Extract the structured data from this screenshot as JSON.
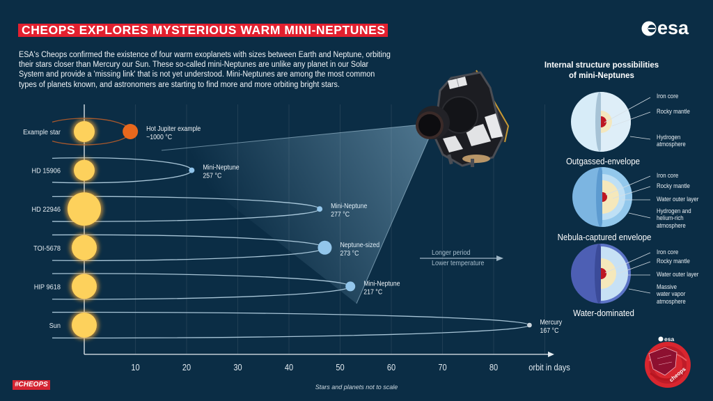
{
  "header": {
    "title": "CHEOPS EXPLORES MYSTERIOUS WARM MINI-NEPTUNES",
    "logo_text": "esa"
  },
  "intro": {
    "lines": [
      "ESA's Cheops confirmed the existence of four warm exoplanets with sizes between Earth and Neptune, orbiting",
      "their stars closer than Mercury our Sun. These so-called mini-Neptunes are unlike any planet in our Solar",
      "System and provide a 'missing link' that is not yet understood. Mini-Neptunes are among the most common",
      "types of planets known, and astronomers are starting to find more and more orbiting bright stars."
    ]
  },
  "chart_data": {
    "type": "scatter",
    "title": "CHEOPS EXPLORES MYSTERIOUS WARM MINI-NEPTUNES",
    "xlabel": "orbit in days",
    "ylabel": "",
    "xlim": [
      0,
      90
    ],
    "x_ticks": [
      10,
      20,
      30,
      40,
      50,
      60,
      70,
      80
    ],
    "grid": true,
    "grid_lines": [
      10,
      20,
      30,
      40,
      50,
      60,
      70,
      80,
      90
    ],
    "legend": "none",
    "star_color": "#fdd15c",
    "categories": [
      "Example star",
      "HD 15906",
      "HD 22946",
      "TOI-5678",
      "HIP 9618",
      "Sun"
    ],
    "series": [
      {
        "name": "Orbital period (days)",
        "values": [
          9,
          21,
          46,
          47,
          52,
          87
        ]
      },
      {
        "name": "Temperature (°C)",
        "values": [
          1000,
          257,
          277,
          273,
          217,
          167
        ]
      }
    ],
    "points": [
      {
        "star": "Example star",
        "planet": "Hot Jupiter example",
        "temperature": "~1000 °C",
        "period_days": 9,
        "star_radius": 15,
        "planet_radius": 11,
        "planet_color": "#e8681d",
        "orbit_color": "#a8582c",
        "orbit_ry": 19
      },
      {
        "star": "HD 15906",
        "planet": "Mini-Neptune",
        "temperature": "257 °C",
        "period_days": 21,
        "star_radius": 15,
        "planet_radius": 4,
        "planet_color": "#8fc3ea",
        "orbit_color": "#a9c6d8",
        "orbit_ry": 18
      },
      {
        "star": "HD 22946",
        "planet": "Mini-Neptune",
        "temperature": "277 °C",
        "period_days": 46,
        "star_radius": 24,
        "planet_radius": 4,
        "planet_color": "#8fc3ea",
        "orbit_color": "#a9c6d8",
        "orbit_ry": 18
      },
      {
        "star": "TOI-5678",
        "planet": "Neptune-sized",
        "temperature": "273 °C",
        "period_days": 47,
        "star_radius": 18,
        "planet_radius": 10,
        "planet_color": "#8fc3ea",
        "orbit_color": "#a9c6d8",
        "orbit_ry": 18.5
      },
      {
        "star": "HIP 9618",
        "planet": "Mini-Neptune",
        "temperature": "217 °C",
        "period_days": 52,
        "star_radius": 18,
        "planet_radius": 7,
        "planet_color": "#8fc3ea",
        "orbit_color": "#a9c6d8",
        "orbit_ry": 18.5
      },
      {
        "star": "Sun",
        "planet": "Mercury",
        "temperature": "167 °C",
        "period_days": 87,
        "star_radius": 18,
        "planet_radius": 3,
        "planet_color": "#c9d3da",
        "orbit_color": "#a9c6d8",
        "orbit_ry": 18.5
      }
    ],
    "annotations": {
      "arrow_line1": "Longer period",
      "arrow_line2": "Lower temperature",
      "note": "Stars and planets not to scale"
    }
  },
  "structures": {
    "title_line1": "Internal structure possibilities",
    "title_line2": "of mini-Neptunes",
    "models": [
      {
        "name": "Outgassed-envelope",
        "layers": [
          {
            "lines": [
              "Iron core"
            ]
          },
          {
            "lines": [
              "Rocky mantle"
            ]
          },
          {
            "lines": [
              "Hydrogen",
              "atmosphere"
            ]
          }
        ],
        "colors": {
          "shell": "#d7ecf8",
          "edge": "#a7c3d6",
          "atmosphere": "#deeef8",
          "mantle": "#f4e7bd",
          "core": "#bd1622"
        }
      },
      {
        "name": "Nebula-captured envelope",
        "layers": [
          {
            "lines": [
              "Iron core"
            ]
          },
          {
            "lines": [
              "Rocky mantle"
            ]
          },
          {
            "lines": [
              "Water outer layer"
            ]
          },
          {
            "lines": [
              "Hydrogen and",
              "helium-rich",
              "atmosphere"
            ]
          }
        ],
        "colors": {
          "shell": "#7cb5e1",
          "edge": "#5d9bd0",
          "atmosphere": "#93c8ec",
          "water": "#bfe0f5",
          "mantle": "#f5e8bb",
          "core": "#bd1622"
        }
      },
      {
        "name": "Water-dominated",
        "layers": [
          {
            "lines": [
              "Iron core"
            ]
          },
          {
            "lines": [
              "Rocky mantle"
            ]
          },
          {
            "lines": [
              "Water outer layer"
            ]
          },
          {
            "lines": [
              "Massive",
              "water vapor",
              "atmosphere"
            ]
          }
        ],
        "colors": {
          "shell": "#4d5fb4",
          "edge": "#3b4b99",
          "atmosphere": "#5c74c6",
          "water": "#c7e1f5",
          "mantle": "#f5e8bb",
          "core": "#bd1622"
        }
      }
    ]
  },
  "footer": {
    "hashtag": "#CHEOPS"
  },
  "badge": {
    "logo_text": "esa",
    "mission": "cheops",
    "color": "#d9262f"
  },
  "colors": {
    "background": "#0b2d45",
    "title_bar": "#e3202f",
    "star": "#fdd15c",
    "hot_jupiter": "#e8681d",
    "mini_neptune": "#8fc3ea"
  }
}
